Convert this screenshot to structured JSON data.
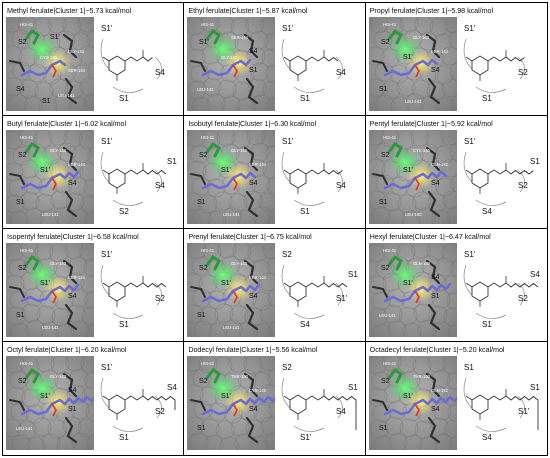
{
  "panels": [
    {
      "caption": "Methyl ferulate|Cluster 1|−5.73 kcal/mol",
      "chain": 1,
      "pocket_labels": [
        "HIS-41",
        "S2",
        "CYS-145",
        "S1'",
        "GLY-143",
        "SER-144",
        "S4",
        "S1",
        "LEU-141"
      ],
      "site_labels": [
        "S1'",
        "S4",
        "S1"
      ]
    },
    {
      "caption": "Ethyl ferulate|Cluster 1|−5.87 kcal/mol",
      "chain": 2,
      "pocket_labels": [
        "HIS-41",
        "S1'",
        "GLY-143",
        "SER-144",
        "S4",
        "S1",
        "LEU-141"
      ],
      "site_labels": [
        "S1'",
        "S4",
        "S1"
      ]
    },
    {
      "caption": "Propyl ferulate|Cluster 1|−5.98 kcal/mol",
      "chain": 3,
      "pocket_labels": [
        "HIS-41",
        "S2",
        "S1'",
        "GLY-143",
        "SER-144",
        "S4",
        "S1",
        "LEU-141"
      ],
      "site_labels": [
        "S1'",
        "S2",
        "S1"
      ]
    },
    {
      "caption": "Butyl ferulate|Cluster 1|−6.02 kcal/mol",
      "chain": 4,
      "pocket_labels": [
        "HIS-41",
        "S2",
        "S1'",
        "GLY-143",
        "SER-144",
        "S4",
        "S1",
        "LEU-141"
      ],
      "site_labels": [
        "S1'",
        "S4",
        "S2",
        "S1"
      ]
    },
    {
      "caption": "Isobutyl ferulate|Cluster 1|−6.30 kcal/mol",
      "chain": 3,
      "pocket_labels": [
        "HIS-41",
        "S2",
        "S1'",
        "GLY-143",
        "SER-144",
        "S4",
        "S1",
        "LEU-141"
      ],
      "site_labels": [
        "S1'",
        "S4",
        "S1"
      ]
    },
    {
      "caption": "Pentyl ferulate|Cluster 1|−5.92 kcal/mol",
      "chain": 5,
      "pocket_labels": [
        "HIS-41",
        "S2",
        "S1'",
        "CYS-145",
        "GLN-192",
        "S4",
        "S1",
        "LEU-190"
      ],
      "site_labels": [
        "S1'",
        "S2",
        "S4",
        "S1"
      ]
    },
    {
      "caption": "Isopentyl ferulate|Cluster 1|−6.58 kcal/mol",
      "chain": 4,
      "pocket_labels": [
        "HIS-41",
        "S2",
        "S1'",
        "GLY-143",
        "SER-144",
        "S4",
        "S1",
        "LEU-141"
      ],
      "site_labels": [
        "S1'",
        "S2",
        "S1"
      ]
    },
    {
      "caption": "Prenyl ferulate|Cluster 1|−6.75 kcal/mol",
      "chain": 4,
      "pocket_labels": [
        "HIS-41",
        "S2",
        "S1'",
        "GLY-143",
        "SER-144",
        "S4",
        "S1",
        "LEU-141"
      ],
      "site_labels": [
        "S2",
        "S1'",
        "S4",
        "S1"
      ]
    },
    {
      "caption": "Hexyl ferulate|Cluster 1|−6.47 kcal/mol",
      "chain": 6,
      "pocket_labels": [
        "HIS-41",
        "S2",
        "S1'",
        "GLN-189",
        "S4",
        "S1",
        "LEU-141"
      ],
      "site_labels": [
        "S1'",
        "S2",
        "S1",
        "S4"
      ]
    },
    {
      "caption": "Octyl ferulate|Cluster 1|−6.20 kcal/mol",
      "chain": 8,
      "pocket_labels": [
        "HIS-41",
        "S2",
        "S1'",
        "GLY-143",
        "S4",
        "S1",
        "LEU-141"
      ],
      "site_labels": [
        "S1'",
        "S2",
        "S1",
        "S4"
      ]
    },
    {
      "caption": "Dodecyl ferulate|Cluster 1|−5.56 kcal/mol",
      "chain": 12,
      "pocket_labels": [
        "HIS-41",
        "S2",
        "S1'",
        "THR-190",
        "CYS-145",
        "S4",
        "S1"
      ],
      "site_labels": [
        "S2",
        "S4",
        "S1'",
        "S1"
      ]
    },
    {
      "caption": "Octadecyl ferulate|Cluster 1|−5.20 kcal/mol",
      "chain": 18,
      "pocket_labels": [
        "HIS-41",
        "S2",
        "S1'",
        "THR-190",
        "GLN-192",
        "S4",
        "S1"
      ],
      "site_labels": [
        "S1",
        "S1'",
        "S4",
        "S1"
      ]
    }
  ],
  "colors": {
    "surface": "#9a9a9a",
    "surface_dark": "#6e6e6e",
    "pocket_green": "#39d353",
    "pocket_yellow": "#f4e04d",
    "ligand_blue": "#6b6bd6",
    "residue_dark": "#2f2f2f",
    "residue_green": "#2a9a3a",
    "border": "#000000"
  }
}
